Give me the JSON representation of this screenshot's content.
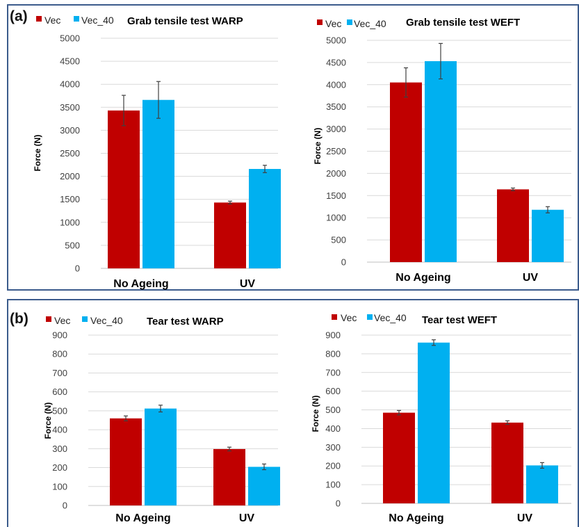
{
  "figure": {
    "panel_labels": [
      "(a)",
      "(b)"
    ],
    "colors": {
      "Vec": "#c00000",
      "Vec_40": "#00b0f0",
      "frame": "#3b5b8c"
    }
  },
  "chart_data": [
    {
      "type": "bar",
      "title": "Grab tensile test WARP",
      "ylabel": "Force (N)",
      "xlabel": "",
      "categories": [
        "No Ageing",
        "UV"
      ],
      "ylim": [
        0,
        5000
      ],
      "yticks": [
        0,
        500,
        1000,
        1500,
        2000,
        2500,
        3000,
        3500,
        4000,
        4500,
        5000
      ],
      "grid": true,
      "legend": "top-left",
      "series": [
        {
          "name": "Vec",
          "color": "#c00000",
          "values": [
            3430,
            1430
          ],
          "errors": [
            330,
            30
          ]
        },
        {
          "name": "Vec_40",
          "color": "#00b0f0",
          "values": [
            3660,
            2160
          ],
          "errors": [
            400,
            80
          ]
        }
      ]
    },
    {
      "type": "bar",
      "title": "Grab tensile test WEFT",
      "ylabel": "Force (N)",
      "xlabel": "",
      "categories": [
        "No Ageing",
        "UV"
      ],
      "ylim": [
        0,
        5000
      ],
      "yticks": [
        0,
        500,
        1000,
        1500,
        2000,
        2500,
        3000,
        3500,
        4000,
        4500,
        5000
      ],
      "grid": true,
      "legend": "top-left",
      "series": [
        {
          "name": "Vec",
          "color": "#c00000",
          "values": [
            4050,
            1640
          ],
          "errors": [
            330,
            30
          ]
        },
        {
          "name": "Vec_40",
          "color": "#00b0f0",
          "values": [
            4530,
            1180
          ],
          "errors": [
            400,
            70
          ]
        }
      ]
    },
    {
      "type": "bar",
      "title": "Tear test WARP",
      "ylabel": "Force (N)",
      "xlabel": "",
      "categories": [
        "No Ageing",
        "UV"
      ],
      "ylim": [
        0,
        900
      ],
      "yticks": [
        0,
        100,
        200,
        300,
        400,
        500,
        600,
        700,
        800,
        900
      ],
      "grid": true,
      "legend": "top-left",
      "series": [
        {
          "name": "Vec",
          "color": "#c00000",
          "values": [
            460,
            298
          ],
          "errors": [
            13,
            10
          ]
        },
        {
          "name": "Vec_40",
          "color": "#00b0f0",
          "values": [
            512,
            204
          ],
          "errors": [
            18,
            15
          ]
        }
      ]
    },
    {
      "type": "bar",
      "title": "Tear test WEFT",
      "ylabel": "Force (N)",
      "xlabel": "",
      "categories": [
        "No Ageing",
        "UV"
      ],
      "ylim": [
        0,
        900
      ],
      "yticks": [
        0,
        100,
        200,
        300,
        400,
        500,
        600,
        700,
        800,
        900
      ],
      "grid": true,
      "legend": "top-left",
      "series": [
        {
          "name": "Vec",
          "color": "#c00000",
          "values": [
            485,
            432
          ],
          "errors": [
            12,
            10
          ]
        },
        {
          "name": "Vec_40",
          "color": "#00b0f0",
          "values": [
            860,
            203
          ],
          "errors": [
            15,
            15
          ]
        }
      ]
    }
  ]
}
